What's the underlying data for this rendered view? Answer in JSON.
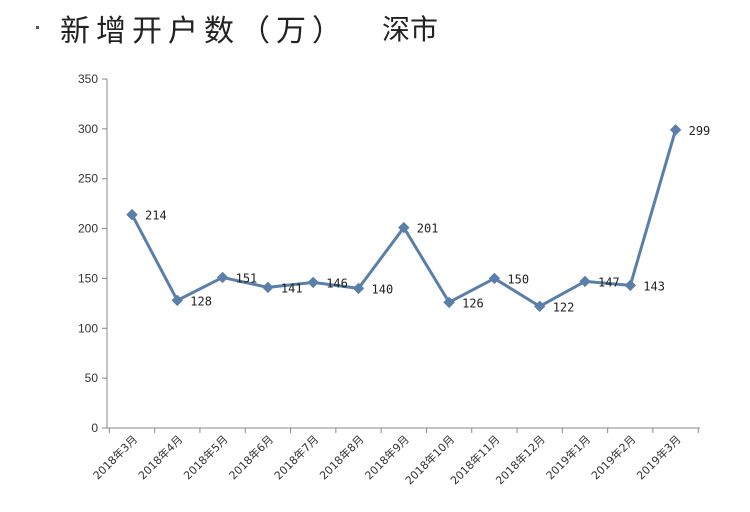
{
  "header": {
    "title": "新增开户数（万）",
    "subtitle": "深市"
  },
  "chart_data": {
    "type": "line",
    "title": "新增开户数（万）",
    "subtitle": "深市",
    "categories": [
      "2018年3月",
      "2018年4月",
      "2018年5月",
      "2018年6月",
      "2018年7月",
      "2018年8月",
      "2018年9月",
      "2018年10月",
      "2018年11月",
      "2018年12月",
      "2019年1月",
      "2019年2月",
      "2019年3月"
    ],
    "series": [
      {
        "values": [
          214,
          128,
          151,
          141,
          146,
          140,
          201,
          126,
          150,
          122,
          147,
          143,
          299
        ]
      }
    ],
    "ylim": [
      0,
      350
    ],
    "yticks": [
      0,
      50,
      100,
      150,
      200,
      250,
      300,
      350
    ],
    "grid": false,
    "legend": "none",
    "line_color": "#5a7fa8",
    "marker": "diamond"
  }
}
